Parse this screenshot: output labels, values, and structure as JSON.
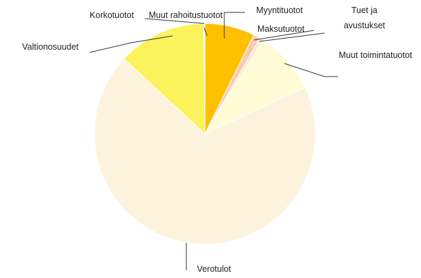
{
  "chart_data": {
    "type": "pie",
    "categories": [
      "Myyntituotot",
      "Maksutuotot",
      "Tuet ja avustukset",
      "Muut toimintatuotot",
      "Verotulot",
      "Valtionosuudet",
      "Korkotuotot",
      "Muut rahoitustuotot"
    ],
    "values": [
      7.3,
      1,
      0.5,
      9.3,
      68.8,
      12.9,
      0.1,
      0.1
    ],
    "colors": [
      "#ffc000",
      "#f8cbad",
      "#fce4d6",
      "#fffbd5",
      "#fdf2dc",
      "#fbf25c",
      "#ffffff",
      "#ffffff"
    ]
  }
}
